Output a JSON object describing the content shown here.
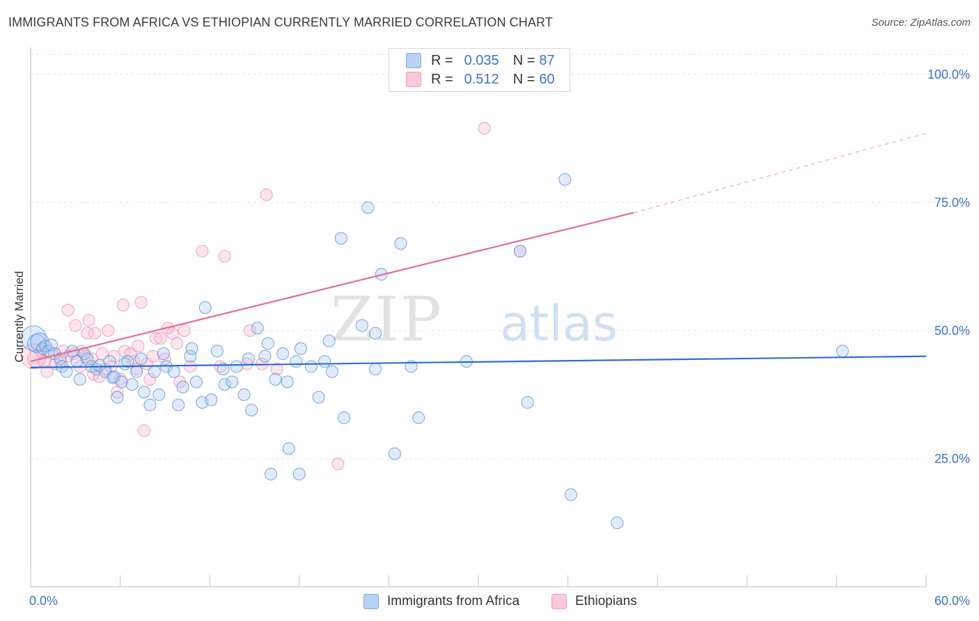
{
  "title": "IMMIGRANTS FROM AFRICA VS ETHIOPIAN CURRENTLY MARRIED CORRELATION CHART",
  "source": "Source: ZipAtlas.com",
  "watermark": {
    "zip": "ZIP",
    "atlas": "atlas"
  },
  "legend": {
    "r_label": "R =",
    "n_label": "N =",
    "blue": {
      "r": "0.035",
      "n": "87"
    },
    "pink": {
      "r": "0.512",
      "n": "60"
    }
  },
  "bottom_legend": {
    "blue": "Immigrants from Africa",
    "pink": "Ethiopians"
  },
  "colors": {
    "blue": "#5b93de",
    "blue_line": "#2c6ed0",
    "pink": "#ef8fb0",
    "pink_line": "#e46a94",
    "tick_text": "#3a73c9"
  },
  "chart_data": {
    "type": "scatter",
    "xlabel": "",
    "ylabel": "Currently Married",
    "xlim": [
      0,
      60
    ],
    "ylim": [
      0,
      105
    ],
    "x_tick_labels": {
      "left": "0.0%",
      "right": "60.0%"
    },
    "y_ticks": [
      {
        "value": 25,
        "label": "25.0%"
      },
      {
        "value": 50,
        "label": "50.0%"
      },
      {
        "value": 75,
        "label": "75.0%"
      },
      {
        "value": 100,
        "label": "100.0%"
      }
    ],
    "grid": true,
    "series": [
      {
        "name": "Immigrants from Africa",
        "color": "#5b93de",
        "trend": {
          "x0": 0,
          "y0": 42.8,
          "x1": 60,
          "y1": 45.0
        },
        "points": [
          [
            0.2,
            48.5,
            3
          ],
          [
            0.4,
            47.5,
            2
          ],
          [
            0.6,
            47.8,
            2
          ],
          [
            0.8,
            46.5,
            1
          ],
          [
            1.0,
            47.0,
            1
          ],
          [
            1.2,
            46.0,
            1
          ],
          [
            1.4,
            47.2,
            1
          ],
          [
            1.6,
            45.5,
            1
          ],
          [
            2.0,
            44.5,
            1
          ],
          [
            2.1,
            43.0,
            1
          ],
          [
            2.4,
            42.0,
            1
          ],
          [
            2.8,
            46.0,
            1
          ],
          [
            3.1,
            44.0,
            1
          ],
          [
            3.3,
            40.5,
            1
          ],
          [
            3.6,
            45.5,
            1
          ],
          [
            3.8,
            44.5,
            1
          ],
          [
            4.1,
            43.0,
            1
          ],
          [
            4.4,
            42.5,
            1
          ],
          [
            4.6,
            43.2,
            1
          ],
          [
            5.0,
            42.0,
            1
          ],
          [
            5.3,
            44.0,
            1
          ],
          [
            5.5,
            40.8,
            1
          ],
          [
            5.6,
            41.0,
            1
          ],
          [
            5.8,
            37.0,
            1
          ],
          [
            6.1,
            40.0,
            1
          ],
          [
            6.3,
            43.5,
            1
          ],
          [
            6.5,
            44.0,
            1
          ],
          [
            6.8,
            39.5,
            1
          ],
          [
            7.1,
            42.0,
            1
          ],
          [
            7.4,
            44.5,
            1
          ],
          [
            7.6,
            38.0,
            1
          ],
          [
            8.0,
            35.5,
            1
          ],
          [
            8.3,
            42.0,
            1
          ],
          [
            8.6,
            37.5,
            1
          ],
          [
            8.9,
            45.5,
            1
          ],
          [
            9.1,
            43.0,
            1
          ],
          [
            9.6,
            42.0,
            1
          ],
          [
            9.9,
            35.5,
            1
          ],
          [
            10.2,
            39.0,
            1
          ],
          [
            10.7,
            45.0,
            1
          ],
          [
            10.8,
            46.5,
            1
          ],
          [
            11.1,
            40.0,
            1
          ],
          [
            11.5,
            36.0,
            1
          ],
          [
            11.7,
            54.5,
            1
          ],
          [
            12.1,
            36.5,
            1
          ],
          [
            12.5,
            46.0,
            1
          ],
          [
            12.9,
            42.5,
            1
          ],
          [
            13.0,
            39.5,
            1
          ],
          [
            13.5,
            40.0,
            1
          ],
          [
            13.8,
            43.0,
            1
          ],
          [
            14.3,
            37.5,
            1
          ],
          [
            14.6,
            44.5,
            1
          ],
          [
            14.8,
            34.5,
            1
          ],
          [
            15.2,
            50.5,
            1
          ],
          [
            15.7,
            45.0,
            1
          ],
          [
            15.9,
            47.5,
            1
          ],
          [
            16.1,
            22.0,
            1
          ],
          [
            16.4,
            40.5,
            1
          ],
          [
            16.9,
            45.5,
            1
          ],
          [
            17.2,
            40.0,
            1
          ],
          [
            17.3,
            27.0,
            1
          ],
          [
            17.8,
            44.0,
            1
          ],
          [
            18.0,
            22.0,
            1
          ],
          [
            18.1,
            46.5,
            1
          ],
          [
            18.8,
            43.0,
            1
          ],
          [
            19.3,
            37.0,
            1
          ],
          [
            19.7,
            44.0,
            1
          ],
          [
            20.0,
            48.0,
            1
          ],
          [
            20.2,
            42.0,
            1
          ],
          [
            20.8,
            68.0,
            1
          ],
          [
            21.0,
            33.0,
            1
          ],
          [
            22.2,
            51.0,
            1
          ],
          [
            22.6,
            74.0,
            1
          ],
          [
            23.1,
            42.5,
            1
          ],
          [
            23.1,
            49.5,
            1
          ],
          [
            23.5,
            61.0,
            1
          ],
          [
            24.4,
            26.0,
            1
          ],
          [
            24.8,
            67.0,
            1
          ],
          [
            25.5,
            43.0,
            1
          ],
          [
            26.0,
            33.0,
            1
          ],
          [
            29.2,
            44.0,
            1
          ],
          [
            32.8,
            65.5,
            1
          ],
          [
            33.3,
            36.0,
            1
          ],
          [
            35.8,
            79.5,
            1
          ],
          [
            36.2,
            18.0,
            1
          ],
          [
            39.3,
            12.5,
            1
          ],
          [
            54.4,
            46.0,
            1
          ]
        ]
      },
      {
        "name": "Ethiopians",
        "color": "#ef8fb0",
        "trend": {
          "x0": 0,
          "y0": 44.0,
          "x1": 40.4,
          "y1": 73.0,
          "dash_x1": 60,
          "dash_y1": 88.5
        },
        "points": [
          [
            0.2,
            45.0,
            3
          ],
          [
            0.4,
            44.5,
            2
          ],
          [
            0.7,
            46.0,
            1
          ],
          [
            0.9,
            44.0,
            1
          ],
          [
            1.1,
            42.0,
            1
          ],
          [
            1.4,
            45.5,
            1
          ],
          [
            1.7,
            43.5,
            1
          ],
          [
            2.0,
            44.0,
            1
          ],
          [
            2.2,
            46.0,
            1
          ],
          [
            2.5,
            45.0,
            1
          ],
          [
            2.5,
            54.0,
            1
          ],
          [
            2.9,
            45.5,
            1
          ],
          [
            3.0,
            51.0,
            1
          ],
          [
            3.3,
            43.0,
            1
          ],
          [
            3.4,
            46.0,
            1
          ],
          [
            3.7,
            45.0,
            1
          ],
          [
            3.8,
            49.5,
            1
          ],
          [
            3.9,
            52.0,
            1
          ],
          [
            4.1,
            44.5,
            1
          ],
          [
            4.2,
            41.5,
            1
          ],
          [
            4.3,
            49.5,
            1
          ],
          [
            4.6,
            41.0,
            1
          ],
          [
            4.8,
            45.5,
            1
          ],
          [
            5.0,
            42.5,
            1
          ],
          [
            5.2,
            50.0,
            1
          ],
          [
            5.4,
            43.0,
            1
          ],
          [
            5.6,
            45.0,
            1
          ],
          [
            5.8,
            38.0,
            1
          ],
          [
            6.0,
            40.5,
            1
          ],
          [
            6.2,
            55.0,
            1
          ],
          [
            6.3,
            46.0,
            1
          ],
          [
            6.7,
            45.5,
            1
          ],
          [
            6.9,
            44.0,
            1
          ],
          [
            7.1,
            42.5,
            1
          ],
          [
            7.2,
            47.0,
            1
          ],
          [
            7.4,
            55.5,
            1
          ],
          [
            7.6,
            30.5,
            1
          ],
          [
            7.8,
            43.5,
            1
          ],
          [
            8.0,
            40.5,
            1
          ],
          [
            8.2,
            45.0,
            1
          ],
          [
            8.4,
            48.5,
            1
          ],
          [
            8.7,
            48.5,
            1
          ],
          [
            9.0,
            44.5,
            1
          ],
          [
            9.2,
            50.5,
            1
          ],
          [
            9.5,
            49.5,
            1
          ],
          [
            9.8,
            47.5,
            1
          ],
          [
            10.0,
            40.0,
            1
          ],
          [
            10.3,
            50.0,
            1
          ],
          [
            10.7,
            43.0,
            1
          ],
          [
            11.5,
            65.5,
            1
          ],
          [
            12.7,
            43.0,
            1
          ],
          [
            13.0,
            64.5,
            1
          ],
          [
            14.5,
            43.5,
            1
          ],
          [
            14.7,
            50.0,
            1
          ],
          [
            15.5,
            43.5,
            1
          ],
          [
            15.8,
            76.5,
            1
          ],
          [
            16.5,
            42.5,
            1
          ],
          [
            20.6,
            24.0,
            1
          ],
          [
            30.4,
            89.5,
            1
          ],
          [
            32.8,
            65.5,
            1
          ]
        ]
      }
    ]
  }
}
